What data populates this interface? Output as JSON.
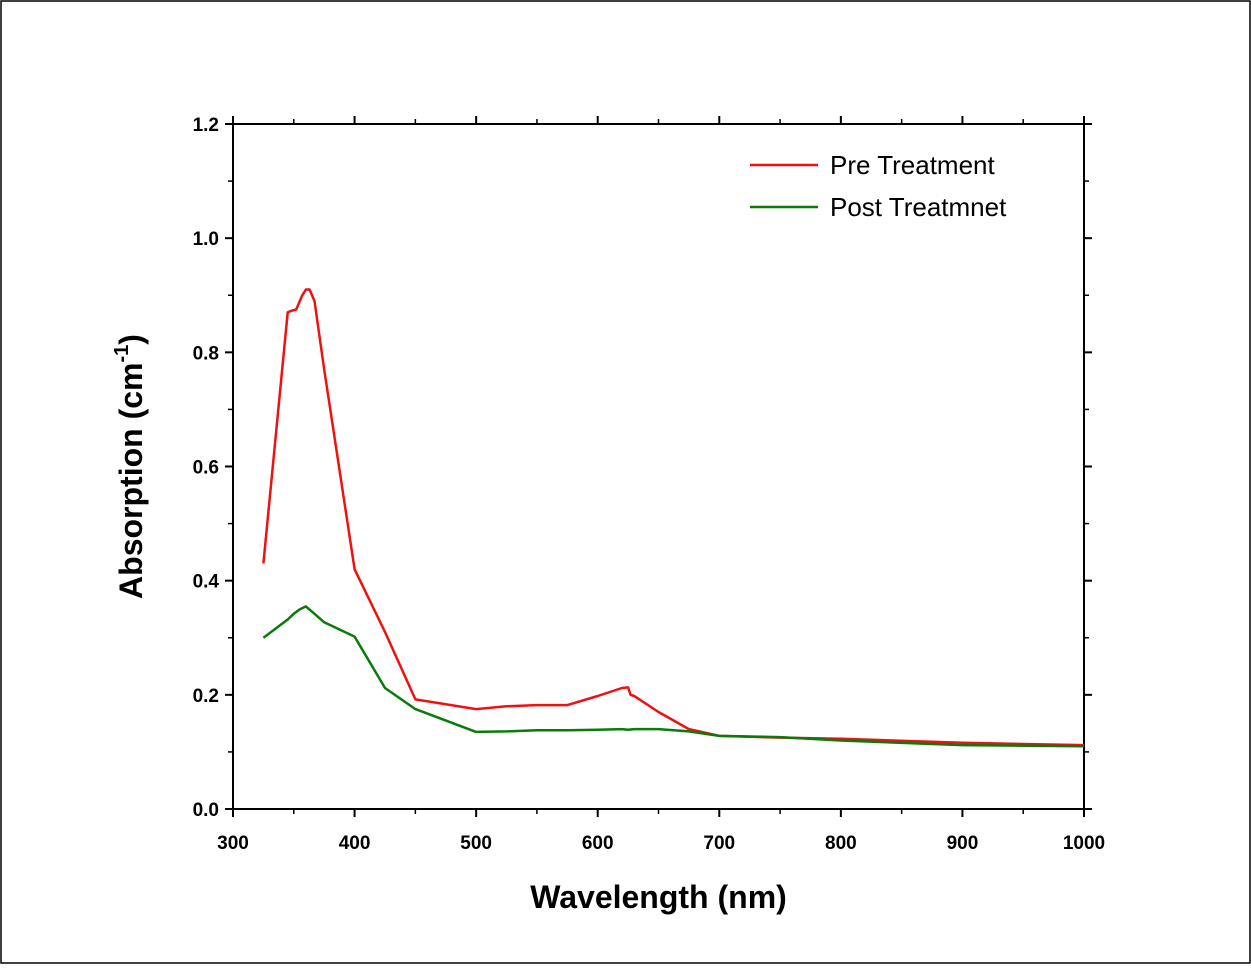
{
  "chart_data": {
    "type": "line",
    "xlabel": "Wavelength (nm)",
    "ylabel": "Absorption (cm",
    "ylabel_superscript": "-1",
    "ylabel_close": ")",
    "xlim": [
      300,
      1000
    ],
    "ylim": [
      0.0,
      1.2
    ],
    "x_ticks": [
      300,
      400,
      500,
      600,
      700,
      800,
      900,
      1000
    ],
    "y_ticks": [
      0.0,
      0.2,
      0.4,
      0.6,
      0.8,
      1.0,
      1.2
    ],
    "x_tick_labels": [
      "300",
      "400",
      "500",
      "600",
      "700",
      "800",
      "900",
      "1000"
    ],
    "y_tick_labels": [
      "0.0",
      "0.2",
      "0.4",
      "0.6",
      "0.8",
      "1.0",
      "1.2"
    ],
    "grid": false,
    "legend_position": "top-right",
    "series": [
      {
        "name": "Pre Treatment",
        "color": "#ee1111",
        "x": [
          325,
          345,
          347,
          352,
          357,
          360,
          363,
          367,
          375,
          400,
          425,
          450,
          500,
          525,
          550,
          575,
          600,
          620,
          625,
          627,
          630,
          650,
          675,
          700,
          750,
          800,
          900,
          1000
        ],
        "y": [
          0.43,
          0.87,
          0.872,
          0.875,
          0.9,
          0.91,
          0.91,
          0.89,
          0.77,
          0.42,
          0.31,
          0.192,
          0.175,
          0.18,
          0.182,
          0.182,
          0.198,
          0.212,
          0.213,
          0.2,
          0.198,
          0.17,
          0.14,
          0.128,
          0.125,
          0.123,
          0.116,
          0.112
        ]
      },
      {
        "name": "Post Treatmnet",
        "color": "#0a7a0a",
        "x": [
          325,
          345,
          350,
          355,
          360,
          367,
          375,
          400,
          425,
          450,
          500,
          525,
          550,
          575,
          600,
          620,
          625,
          630,
          650,
          675,
          700,
          750,
          800,
          900,
          1000
        ],
        "y": [
          0.3,
          0.332,
          0.342,
          0.35,
          0.355,
          0.342,
          0.327,
          0.302,
          0.212,
          0.175,
          0.135,
          0.136,
          0.138,
          0.138,
          0.139,
          0.14,
          0.139,
          0.14,
          0.14,
          0.136,
          0.128,
          0.126,
          0.12,
          0.112,
          0.11
        ]
      }
    ]
  }
}
